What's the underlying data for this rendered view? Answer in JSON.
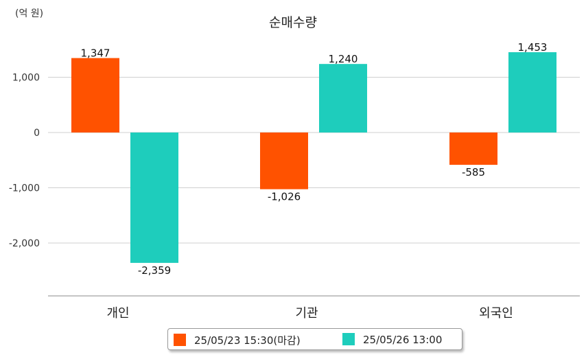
{
  "unit_label": "(억 원)",
  "colors": {
    "series1": "#ff5200",
    "series2": "#1ecdbc",
    "grid": "#cfcfcf",
    "axis": "#888888"
  },
  "chart_data": {
    "type": "bar",
    "title": "순매수량",
    "categories": [
      "개인",
      "기관",
      "외국인"
    ],
    "series": [
      {
        "name": "25/05/23 15:30(마감)",
        "values": [
          1347,
          -1026,
          -585
        ],
        "labels": [
          "1,347",
          "-1,026",
          "-585"
        ]
      },
      {
        "name": "25/05/26 13:00",
        "values": [
          -2359,
          1240,
          1453
        ],
        "labels": [
          "-2,359",
          "1,240",
          "1,453"
        ]
      }
    ],
    "yticks": [
      1000,
      0,
      -1000,
      -2000
    ],
    "ytick_labels": [
      "1,000",
      "0",
      "-1,000",
      "-2,000"
    ],
    "ylim": [
      -2900,
      1800
    ],
    "grid": true,
    "legend": "bottom"
  }
}
